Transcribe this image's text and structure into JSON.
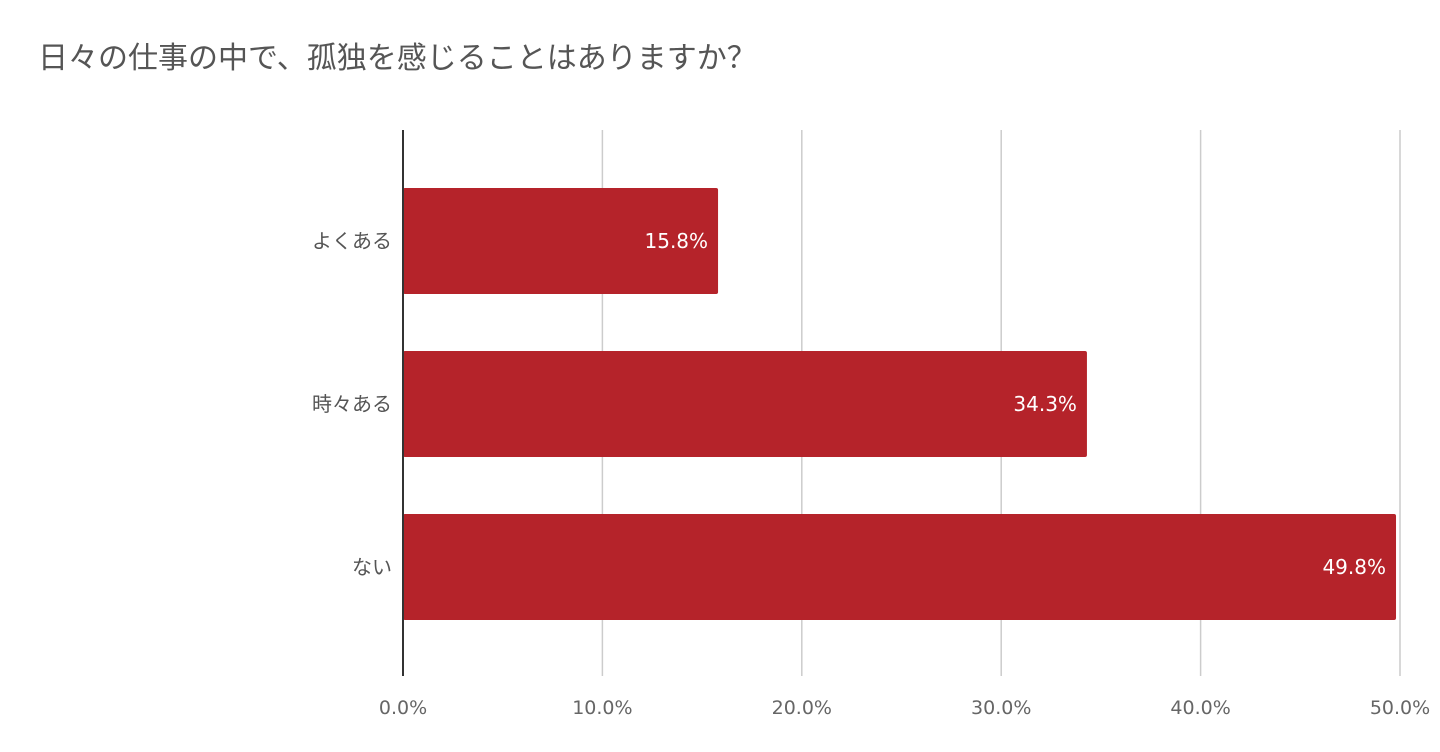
{
  "chart_data": {
    "type": "bar",
    "orientation": "horizontal",
    "title": "日々の仕事の中で、孤独を感じることはありますか？",
    "categories": [
      "よくある",
      "時々ある",
      "ない"
    ],
    "values": [
      15.8,
      34.3,
      49.8
    ],
    "data_labels": [
      "15.8%",
      "34.3%",
      "49.8%"
    ],
    "x_ticks": [
      0,
      10,
      20,
      30,
      40,
      50
    ],
    "x_tick_labels": [
      "0.0%",
      "10.0%",
      "20.0%",
      "30.0%",
      "40.0%",
      "50.0%"
    ],
    "xlim": [
      0,
      50
    ],
    "grid": true,
    "legend": "none",
    "bar_color": "#b5232a"
  }
}
